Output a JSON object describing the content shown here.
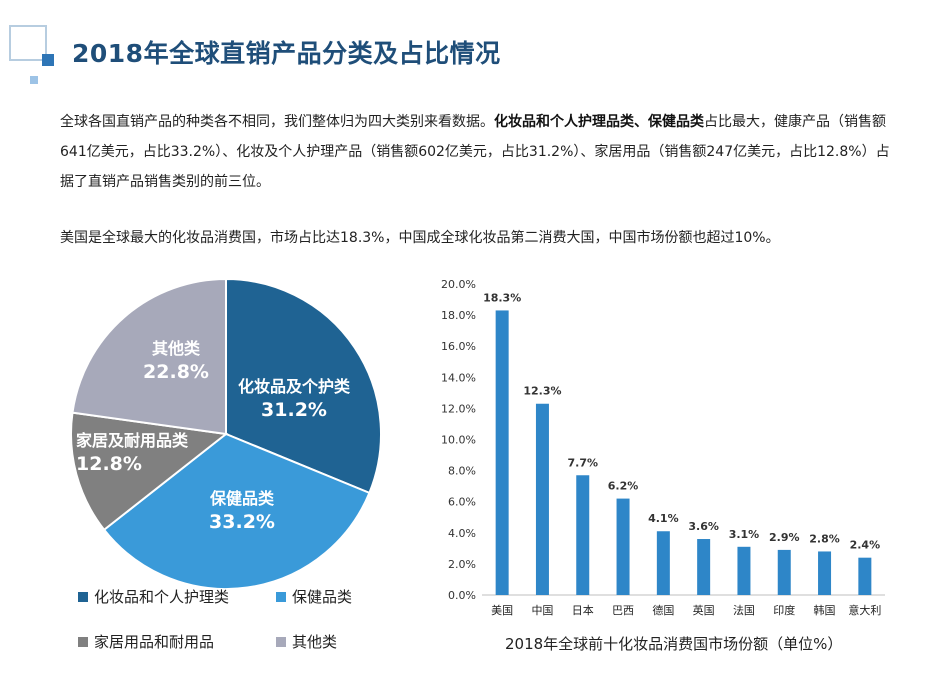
{
  "header": {
    "title": "2018年全球直销产品分类及占比情况"
  },
  "intro": {
    "p1_lead": "全球各国直销产品的种类各不相同，我们整体归为四大类别来看数据。",
    "p1_bold": "化妆品和个人护理品类、保健品类",
    "p1_tail": "占比最大，健康产品（销售额641亿美元，占比33.2%）、化妆及个人护理产品（销售额602亿美元，占比31.2%）、家居用品（销售额247亿美元，占比12.8%）占据了直销产品销售类别的前三位。",
    "p2": "美国是全球最大的化妆品消费国，市场占比达18.3%，中国成全球化妆品第二消费大国，中国市场份额也超过10%。"
  },
  "colors": {
    "title": "#1f4e79",
    "cosmetics": "#1f6393",
    "health": "#3a9ad9",
    "home": "#808080",
    "other": "#a7a9ba",
    "bar": "#2e86c8"
  },
  "chart_data": [
    {
      "type": "pie",
      "slices": [
        {
          "label": "化妆品及个护类",
          "value": 31.2,
          "display": "31.2%",
          "legend": "化妆品和个人护理类",
          "color": "#1f6393"
        },
        {
          "label": "保健品类",
          "value": 33.2,
          "display": "33.2%",
          "legend": "保健品类",
          "color": "#3a9ad9"
        },
        {
          "label": "家居及耐用品类",
          "value": 12.8,
          "display": "12.8%",
          "legend": "家居用品和耐用品",
          "color": "#808080"
        },
        {
          "label": "其他类",
          "value": 22.8,
          "display": "22.8%",
          "legend": "其他类",
          "color": "#a7a9ba"
        }
      ],
      "start_angle_deg": 0,
      "direction": "clockwise",
      "legend_position": "bottom"
    },
    {
      "type": "bar",
      "title": "2018年全球前十化妆品消费国市场份额（单位%）",
      "categories": [
        "美国",
        "中国",
        "日本",
        "巴西",
        "德国",
        "英国",
        "法国",
        "印度",
        "韩国",
        "意大利"
      ],
      "values": [
        18.3,
        12.3,
        7.7,
        6.2,
        4.1,
        3.6,
        3.1,
        2.9,
        2.8,
        2.4
      ],
      "data_labels": [
        "18.3%",
        "12.3%",
        "7.7%",
        "6.2%",
        "4.1%",
        "3.6%",
        "3.1%",
        "2.9%",
        "2.8%",
        "2.4%"
      ],
      "ylim": [
        0,
        20
      ],
      "yticks": [
        "0.0%",
        "2.0%",
        "4.0%",
        "6.0%",
        "8.0%",
        "10.0%",
        "12.0%",
        "14.0%",
        "16.0%",
        "18.0%",
        "20.0%"
      ],
      "grid": false,
      "color": "#2e86c8"
    }
  ]
}
